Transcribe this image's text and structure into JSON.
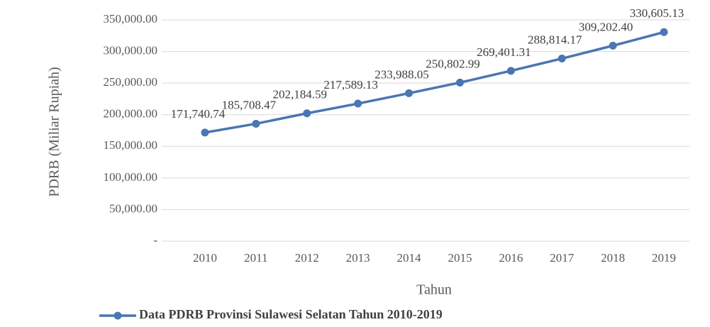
{
  "chart_data": {
    "type": "line",
    "x_label": "Tahun",
    "y_label": "PDRB (Miliar Rupiah)",
    "categories": [
      "2010",
      "2011",
      "2012",
      "2013",
      "2014",
      "2015",
      "2016",
      "2017",
      "2018",
      "2019"
    ],
    "series": [
      {
        "name": "Data PDRB Provinsi Sulawesi Selatan Tahun 2010-2019",
        "color": "#4a76b1",
        "values": [
          171740.74,
          185708.47,
          202184.59,
          217589.13,
          233988.05,
          250802.99,
          269401.31,
          288814.17,
          309202.4,
          330605.13
        ],
        "value_labels": [
          "171,740.74",
          "185,708.47",
          "202,184.59",
          "217,589.13",
          "233,988.05",
          "250,802.99",
          "269,401.31",
          "288,814.17",
          "309,202.40",
          "330,605.13"
        ]
      }
    ],
    "ylim": [
      0,
      350000
    ],
    "yticks": [
      {
        "value": 0,
        "label": "-"
      },
      {
        "value": 50000,
        "label": "50,000.00"
      },
      {
        "value": 100000,
        "label": "100,000.00"
      },
      {
        "value": 150000,
        "label": "150,000.00"
      },
      {
        "value": 200000,
        "label": "200,000.00"
      },
      {
        "value": 250000,
        "label": "250,000.00"
      },
      {
        "value": 300000,
        "label": "300,000.00"
      },
      {
        "value": 350000,
        "label": "350,000.00"
      }
    ],
    "grid": true,
    "legend": "bottom"
  }
}
